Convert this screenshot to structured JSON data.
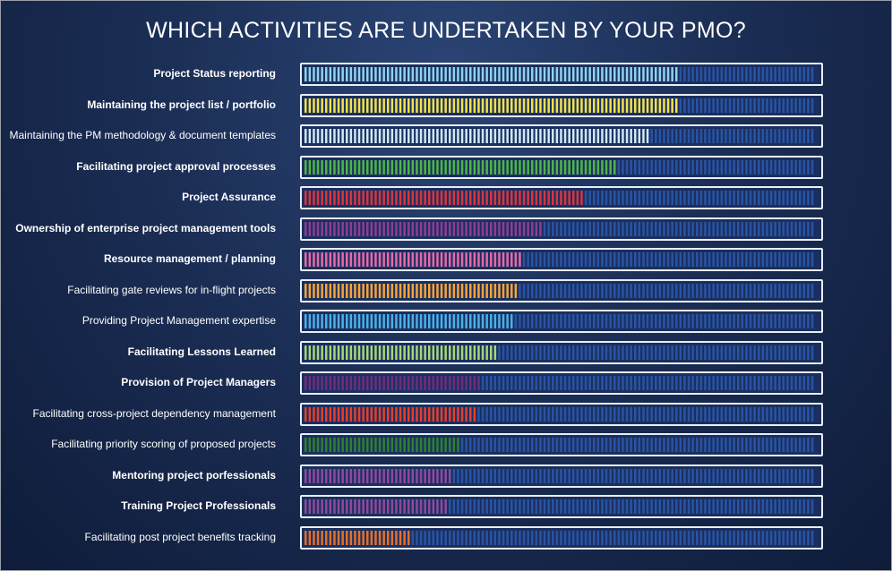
{
  "chart_data": {
    "type": "bar",
    "orientation": "horizontal",
    "title": "WHICH ACTIVITIES ARE UNDERTAKEN BY YOUR PMO?",
    "xlim": [
      0,
      100
    ],
    "grid": false,
    "legend": "none",
    "categories": [
      "Project Status reporting",
      "Maintaining the project list / portfolio",
      "Maintaining the PM methodology & document templates",
      "Facilitating project approval processes",
      "Project Assurance",
      "Ownership of enterprise project management tools",
      "Resource management / planning",
      "Facilitating gate reviews for in-flight projects",
      "Providing Project Management expertise",
      "Facilitating Lessons Learned",
      "Provision of Project Managers",
      "Facilitating cross-project dependency management",
      "Facilitating priority scoring of proposed projects",
      "Mentoring project porfessionals",
      "Training Project Professionals",
      "Facilitating post project benefits tracking"
    ],
    "values": [
      73,
      73,
      68,
      61,
      55,
      47,
      43,
      42,
      41,
      38,
      35,
      34,
      31,
      29,
      28,
      21
    ],
    "bold": [
      true,
      true,
      false,
      true,
      true,
      true,
      true,
      false,
      false,
      true,
      true,
      false,
      false,
      true,
      true,
      false
    ],
    "colors": [
      "#8fd3ec",
      "#f3e24a",
      "#cfe8f7",
      "#4fb548",
      "#d8363f",
      "#8d3d96",
      "#e46aa9",
      "#f5a43a",
      "#4ab0e8",
      "#a6d67a",
      "#6d2d7f",
      "#e43f2f",
      "#2f7f33",
      "#8e4a9e",
      "#8e4a9e",
      "#e3702d"
    ],
    "empty_color": "#2d59b0"
  }
}
